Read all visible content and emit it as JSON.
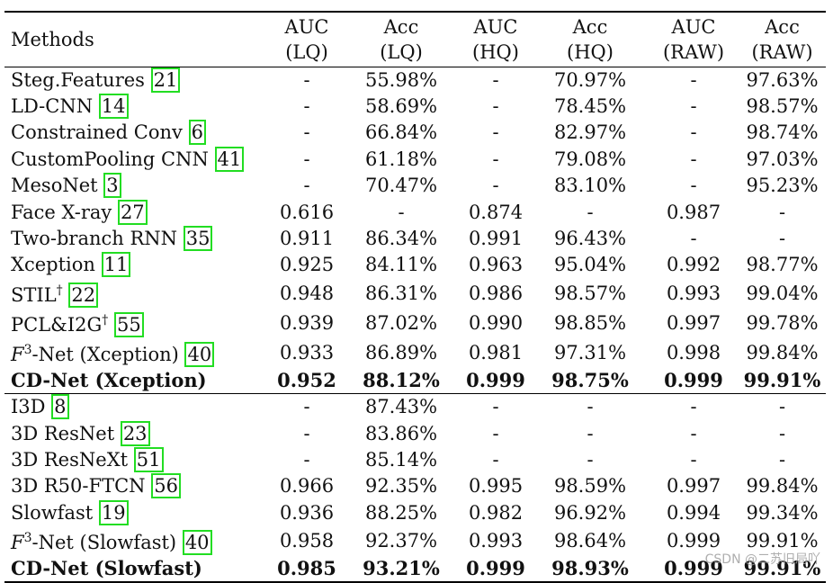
{
  "header": {
    "methods": "Methods",
    "cols": [
      {
        "metric": "AUC",
        "quality": "(LQ)"
      },
      {
        "metric": "Acc",
        "quality": "(LQ)"
      },
      {
        "metric": "AUC",
        "quality": "(HQ)"
      },
      {
        "metric": "Acc",
        "quality": "(HQ)"
      },
      {
        "metric": "AUC",
        "quality": "(RAW)"
      },
      {
        "metric": "Acc",
        "quality": "(RAW)"
      }
    ]
  },
  "groups": [
    {
      "rows": [
        {
          "name": "Steg.Features ",
          "ref": "21",
          "vals": [
            "-",
            "55.98%",
            "-",
            "70.97%",
            "-",
            "97.63%"
          ]
        },
        {
          "name": "LD-CNN ",
          "ref": "14",
          "vals": [
            "-",
            "58.69%",
            "-",
            "78.45%",
            "-",
            "98.57%"
          ]
        },
        {
          "name": "Constrained Conv ",
          "ref": "6",
          "vals": [
            "-",
            "66.84%",
            "-",
            "82.97%",
            "-",
            "98.74%"
          ]
        },
        {
          "name": "CustomPooling CNN ",
          "ref": "41",
          "vals": [
            "-",
            "61.18%",
            "-",
            "79.08%",
            "-",
            "97.03%"
          ]
        },
        {
          "name": "MesoNet ",
          "ref": "3",
          "vals": [
            "-",
            "70.47%",
            "-",
            "83.10%",
            "-",
            "95.23%"
          ]
        },
        {
          "name": "Face X-ray ",
          "ref": "27",
          "vals": [
            "0.616",
            "-",
            "0.874",
            "-",
            "0.987",
            "-"
          ]
        },
        {
          "name": "Two-branch RNN ",
          "ref": "35",
          "vals": [
            "0.911",
            "86.34%",
            "0.991",
            "96.43%",
            "-",
            "-"
          ]
        },
        {
          "name": "Xception ",
          "ref": "11",
          "vals": [
            "0.925",
            "84.11%",
            "0.963",
            "95.04%",
            "0.992",
            "98.77%"
          ]
        },
        {
          "name": "STIL",
          "sup": "†",
          "name_tail": " ",
          "ref": "22",
          "vals": [
            "0.948",
            "86.31%",
            "0.986",
            "98.57%",
            "0.993",
            "99.04%"
          ]
        },
        {
          "name": "PCL&I2G",
          "sup": "†",
          "name_tail": " ",
          "ref": "55",
          "vals": [
            "0.939",
            "87.02%",
            "0.990",
            "98.85%",
            "0.997",
            "99.78%"
          ]
        },
        {
          "name_italic": "F",
          "sup": "3",
          "name_tail": "-Net (Xception) ",
          "ref": "40",
          "vals": [
            "0.933",
            "86.89%",
            "0.981",
            "97.31%",
            "0.998",
            "99.84%"
          ]
        },
        {
          "name": "CD-Net (Xception)",
          "bold": true,
          "vals": [
            "0.952",
            "88.12%",
            "0.999",
            "98.75%",
            "0.999",
            "99.91%"
          ]
        }
      ]
    },
    {
      "rows": [
        {
          "name": "I3D ",
          "ref": "8",
          "vals": [
            "-",
            "87.43%",
            "-",
            "-",
            "-",
            "-"
          ]
        },
        {
          "name": "3D ResNet ",
          "ref": "23",
          "vals": [
            "-",
            "83.86%",
            "-",
            "-",
            "-",
            "-"
          ]
        },
        {
          "name": "3D ResNeXt ",
          "ref": "51",
          "vals": [
            "-",
            "85.14%",
            "-",
            "-",
            "-",
            "-"
          ]
        },
        {
          "name": "3D R50-FTCN ",
          "ref": "56",
          "vals": [
            "0.966",
            "92.35%",
            "0.995",
            "98.59%",
            "0.997",
            "99.84%"
          ]
        },
        {
          "name": "Slowfast ",
          "ref": "19",
          "vals": [
            "0.936",
            "88.25%",
            "0.982",
            "96.92%",
            "0.994",
            "99.34%"
          ]
        },
        {
          "name_italic": "F",
          "sup": "3",
          "name_tail": "-Net (Slowfast) ",
          "ref": "40",
          "vals": [
            "0.958",
            "92.37%",
            "0.993",
            "98.64%",
            "0.999",
            "99.91%"
          ]
        },
        {
          "name": "CD-Net (Slowfast)",
          "bold": true,
          "vals": [
            "0.985",
            "93.21%",
            "0.999",
            "98.93%",
            "0.999",
            "99.91%"
          ]
        }
      ]
    }
  ],
  "watermark": "CSDN @二苏旧局吖",
  "colors": {
    "ref_box": "#22dd22",
    "text": "#111111",
    "rule": "#000000"
  }
}
